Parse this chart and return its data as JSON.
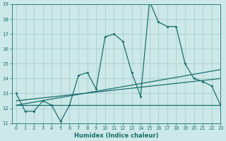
{
  "xlabel": "Humidex (Indice chaleur)",
  "background_color": "#cce8e8",
  "grid_color": "#aacece",
  "line_color": "#1a6e6e",
  "x_data": [
    0,
    1,
    2,
    3,
    4,
    5,
    6,
    7,
    8,
    9,
    10,
    11,
    12,
    13,
    14,
    15,
    16,
    17,
    18,
    19,
    20,
    21,
    22,
    23
  ],
  "y_main": [
    13.0,
    11.8,
    11.8,
    12.5,
    12.2,
    11.1,
    12.2,
    14.2,
    14.4,
    13.3,
    16.8,
    17.0,
    16.5,
    14.4,
    12.8,
    19.2,
    17.8,
    17.5,
    17.5,
    15.0,
    14.0,
    13.8,
    13.5,
    12.2
  ],
  "y_reg1_start": 12.2,
  "y_reg1_end": 12.2,
  "y_reg2_start": 12.2,
  "y_reg2_end": 14.6,
  "y_reg3_start": 12.5,
  "y_reg3_end": 14.0,
  "ylim": [
    11,
    19
  ],
  "xlim": [
    -0.5,
    23
  ],
  "yticks": [
    11,
    12,
    13,
    14,
    15,
    16,
    17,
    18,
    19
  ],
  "xticks": [
    0,
    1,
    2,
    3,
    4,
    5,
    6,
    7,
    8,
    9,
    10,
    11,
    12,
    13,
    14,
    15,
    16,
    17,
    18,
    19,
    20,
    21,
    22,
    23
  ]
}
